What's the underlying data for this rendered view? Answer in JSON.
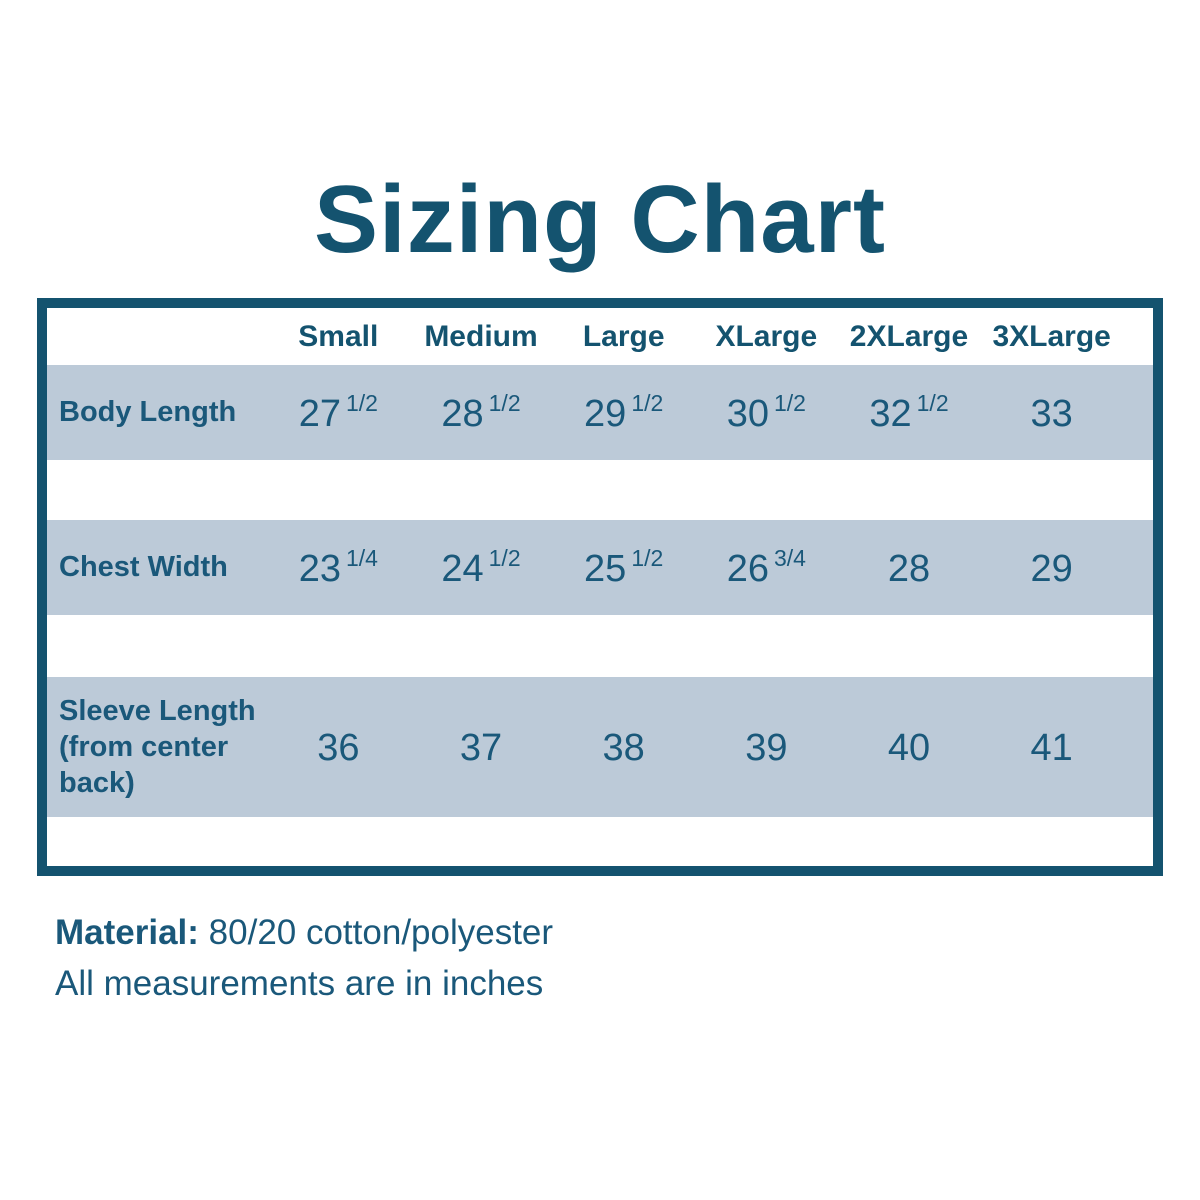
{
  "title": "Sizing Chart",
  "table": {
    "size_headers": [
      "Small",
      "Medium",
      "Large",
      "XLarge",
      "2XLarge",
      "3XLarge"
    ],
    "rows": [
      {
        "label": "Body Length",
        "values": [
          {
            "whole": "27",
            "frac": "1/2"
          },
          {
            "whole": "28",
            "frac": "1/2"
          },
          {
            "whole": "29",
            "frac": "1/2"
          },
          {
            "whole": "30",
            "frac": "1/2"
          },
          {
            "whole": "32",
            "frac": "1/2"
          },
          {
            "whole": "33",
            "frac": ""
          }
        ]
      },
      {
        "label": "Chest Width",
        "values": [
          {
            "whole": "23",
            "frac": "1/4"
          },
          {
            "whole": "24",
            "frac": "1/2"
          },
          {
            "whole": "25",
            "frac": "1/2"
          },
          {
            "whole": "26",
            "frac": "3/4"
          },
          {
            "whole": "28",
            "frac": ""
          },
          {
            "whole": "29",
            "frac": ""
          }
        ]
      },
      {
        "label": "Sleeve Length (from center back)",
        "values": [
          {
            "whole": "36",
            "frac": ""
          },
          {
            "whole": "37",
            "frac": ""
          },
          {
            "whole": "38",
            "frac": ""
          },
          {
            "whole": "39",
            "frac": ""
          },
          {
            "whole": "40",
            "frac": ""
          },
          {
            "whole": "41",
            "frac": ""
          }
        ]
      }
    ]
  },
  "footer": {
    "material_label": "Material:",
    "material_value": " 80/20 cotton/polyester",
    "note": "All measurements are in inches"
  },
  "colors": {
    "accent_teal": "#14536F",
    "text_teal": "#1A587A",
    "row_background": "#BCCAD8",
    "page_background": "#FFFFFF"
  },
  "chart_data": {
    "type": "table",
    "title": "Sizing Chart",
    "categories": [
      "Small",
      "Medium",
      "Large",
      "XLarge",
      "2XLarge",
      "3XLarge"
    ],
    "series": [
      {
        "name": "Body Length",
        "values": [
          27.5,
          28.5,
          29.5,
          30.5,
          32.5,
          33
        ]
      },
      {
        "name": "Chest Width",
        "values": [
          23.25,
          24.5,
          25.5,
          26.75,
          28,
          29
        ]
      },
      {
        "name": "Sleeve Length (from center back)",
        "values": [
          36,
          37,
          38,
          39,
          40,
          41
        ]
      }
    ],
    "units": "inches",
    "notes": [
      "Material: 80/20 cotton/polyester",
      "All measurements are in inches"
    ]
  }
}
